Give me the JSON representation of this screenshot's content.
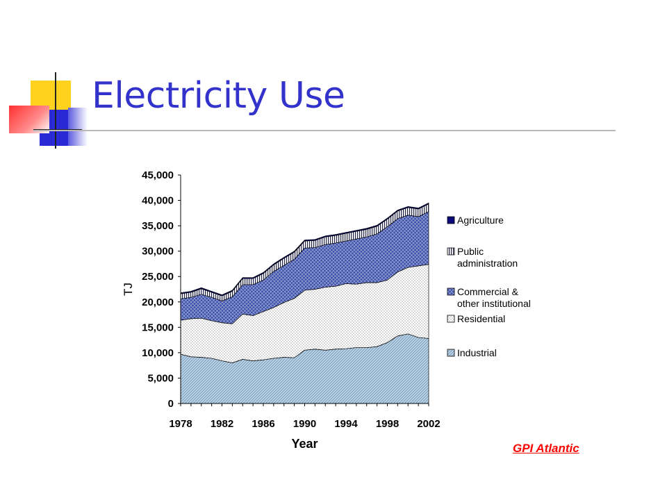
{
  "slide": {
    "title": "Electricity Use",
    "credit_link": "GPI Atlantic",
    "colors": {
      "title": "#3333cc",
      "rule": "#b8b8b8",
      "accent_yellow": "#ffd21e",
      "accent_blue": "#2b2bd6",
      "accent_red": "#ff3030",
      "credit": "#ff0000"
    }
  },
  "chart_data": {
    "type": "area",
    "stacked": true,
    "ylabel": "TJ",
    "xlabel": "Year",
    "ylim": [
      0,
      45000
    ],
    "xlim": [
      1978,
      2002
    ],
    "y_ticks": [
      "0",
      "5,000",
      "10,000",
      "15,000",
      "20,000",
      "25,000",
      "30,000",
      "35,000",
      "40,000",
      "45,000"
    ],
    "x_ticks": [
      "1978",
      "1982",
      "1986",
      "1990",
      "1994",
      "1998",
      "2002"
    ],
    "legend_position": "right",
    "x": [
      1978,
      1979,
      1980,
      1981,
      1982,
      1983,
      1984,
      1985,
      1986,
      1987,
      1988,
      1989,
      1990,
      1991,
      1992,
      1993,
      1994,
      1995,
      1996,
      1997,
      1998,
      1999,
      2000,
      2001,
      2002
    ],
    "series": [
      {
        "name": "Industrial",
        "values": [
          9700,
          9200,
          9100,
          8900,
          8400,
          8000,
          8700,
          8400,
          8600,
          8900,
          9100,
          9000,
          10500,
          10700,
          10500,
          10700,
          10800,
          11000,
          11000,
          11200,
          12000,
          13300,
          13700,
          13000,
          12800
        ]
      },
      {
        "name": "Residential",
        "values": [
          6700,
          7500,
          7700,
          7400,
          7500,
          7700,
          8900,
          8900,
          9500,
          10000,
          10800,
          11700,
          11800,
          11800,
          12400,
          12400,
          12800,
          12500,
          12800,
          12600,
          12300,
          12600,
          13100,
          14100,
          14600
        ]
      },
      {
        "name": "Commercial & other institutional",
        "values": [
          4200,
          4200,
          4700,
          4600,
          4300,
          5300,
          5800,
          6100,
          6200,
          7100,
          7300,
          7700,
          8300,
          8200,
          8400,
          8500,
          8400,
          8900,
          9000,
          9600,
          10500,
          10500,
          10300,
          9700,
          10400
        ]
      },
      {
        "name": "Public administration",
        "values": [
          1000,
          1000,
          1100,
          1000,
          1000,
          1100,
          1200,
          1200,
          1300,
          1300,
          1400,
          1400,
          1400,
          1400,
          1500,
          1500,
          1500,
          1500,
          1500,
          1500,
          1500,
          1500,
          1500,
          1500,
          1500
        ]
      },
      {
        "name": "Agriculture",
        "values": [
          200,
          200,
          200,
          200,
          200,
          200,
          200,
          200,
          200,
          200,
          200,
          200,
          200,
          200,
          200,
          200,
          200,
          200,
          200,
          200,
          200,
          200,
          200,
          200,
          200
        ]
      }
    ],
    "series_colors": [
      "#bcd4e8",
      "#e4e4e4",
      "#3c4fa8",
      "#222244",
      "#0a0a7a"
    ]
  }
}
